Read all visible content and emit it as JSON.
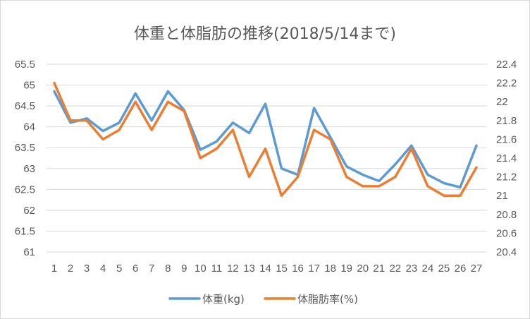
{
  "chart_data": {
    "type": "line",
    "title": "体重と体脂肪の推移(2018/5/14まで)",
    "categories": [
      "1",
      "2",
      "3",
      "4",
      "5",
      "6",
      "7",
      "8",
      "9",
      "10",
      "11",
      "12",
      "13",
      "14",
      "15",
      "16",
      "17",
      "18",
      "19",
      "20",
      "21",
      "22",
      "23",
      "24",
      "25",
      "26",
      "27"
    ],
    "y_left": {
      "ticks": [
        "61",
        "61.5",
        "62",
        "62.5",
        "63",
        "63.5",
        "64",
        "64.5",
        "65",
        "65.5"
      ],
      "range": [
        61,
        65.5
      ]
    },
    "y_right": {
      "ticks": [
        "20.4",
        "20.6",
        "20.8",
        "21",
        "21.2",
        "21.4",
        "21.6",
        "21.8",
        "22",
        "22.2",
        "22.4"
      ],
      "range": [
        20.4,
        22.4
      ]
    },
    "grid": "horizontal",
    "legend_position": "bottom",
    "series": [
      {
        "name": "体重(kg)",
        "axis": "left",
        "color": "#5b9bd5",
        "values": [
          64.85,
          64.1,
          64.2,
          63.9,
          64.1,
          64.8,
          64.15,
          64.85,
          64.4,
          63.45,
          63.65,
          64.1,
          63.85,
          64.55,
          63.0,
          62.85,
          64.45,
          63.75,
          63.05,
          62.85,
          62.7,
          63.1,
          63.55,
          62.85,
          62.65,
          62.55,
          63.55
        ]
      },
      {
        "name": "体脂肪率(%)",
        "axis": "right",
        "color": "#ed7d31",
        "values": [
          22.2,
          21.8,
          21.8,
          21.6,
          21.7,
          22.0,
          21.7,
          22.0,
          21.9,
          21.4,
          21.5,
          21.7,
          21.2,
          21.5,
          21.0,
          21.2,
          21.7,
          21.6,
          21.2,
          21.1,
          21.1,
          21.2,
          21.5,
          21.1,
          21.0,
          21.0,
          21.3
        ]
      }
    ]
  }
}
